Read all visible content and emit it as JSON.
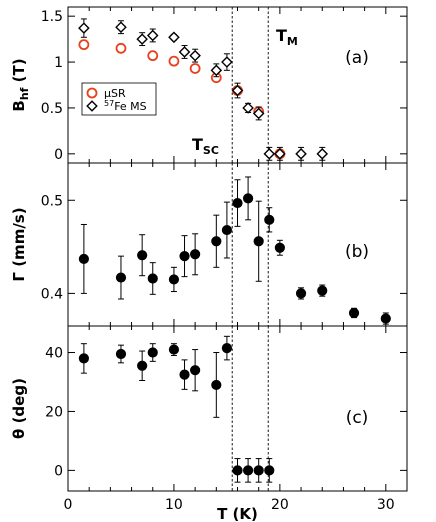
{
  "chart_data": {
    "type": "scatter",
    "x_axis": {
      "label": "T (K)",
      "lim": [
        0,
        32
      ],
      "ticks": [
        0,
        10,
        20,
        30
      ]
    },
    "markers": {
      "T_SC": 15.5,
      "T_M": 18.9
    },
    "labels": {
      "T_SC_main": "T",
      "T_SC_sub": "SC",
      "T_M_main": "T",
      "T_M_sub": "M"
    },
    "panels": [
      {
        "id": "a",
        "panel_label": "(a)",
        "ylabel_main": "B",
        "ylabel_sub": "hf",
        "ylabel_unit": " (T)",
        "ylim": [
          -0.1,
          1.6
        ],
        "yticks": [
          {
            "v": 0,
            "label": "0"
          },
          {
            "v": 0.5,
            "label": "0.5"
          },
          {
            "v": 1,
            "label": "1"
          },
          {
            "v": 1.5,
            "label": "1.5"
          }
        ],
        "series": [
          {
            "name_prefix": "μSR",
            "name_sup": "",
            "name_suffix": "",
            "marker": "circle-open",
            "color": "#e8401c",
            "points": [
              {
                "x": 1.5,
                "y": 1.19
              },
              {
                "x": 5,
                "y": 1.15
              },
              {
                "x": 8,
                "y": 1.07
              },
              {
                "x": 10,
                "y": 1.01
              },
              {
                "x": 12,
                "y": 0.93
              },
              {
                "x": 14,
                "y": 0.83
              },
              {
                "x": 16,
                "y": 0.69
              },
              {
                "x": 18,
                "y": 0.46
              },
              {
                "x": 20,
                "y": 0.0
              }
            ]
          },
          {
            "name_prefix": "",
            "name_sup": "57",
            "name_suffix": "Fe MS",
            "marker": "diamond-open",
            "color": "#000000",
            "points": [
              {
                "x": 1.5,
                "y": 1.37,
                "err": 0.1
              },
              {
                "x": 5,
                "y": 1.38,
                "err": 0.07
              },
              {
                "x": 7,
                "y": 1.25,
                "err": 0.07
              },
              {
                "x": 8,
                "y": 1.29,
                "err": 0.07
              },
              {
                "x": 10,
                "y": 1.27,
                "err": 0.03
              },
              {
                "x": 11,
                "y": 1.11,
                "err": 0.07
              },
              {
                "x": 12,
                "y": 1.07,
                "err": 0.07
              },
              {
                "x": 14,
                "y": 0.91,
                "err": 0.07
              },
              {
                "x": 15,
                "y": 1.0,
                "err": 0.09
              },
              {
                "x": 16,
                "y": 0.69,
                "err": 0.08
              },
              {
                "x": 17,
                "y": 0.5,
                "err": 0.05
              },
              {
                "x": 18,
                "y": 0.44,
                "err": 0.07
              },
              {
                "x": 19,
                "y": 0.0,
                "err": 0.07
              },
              {
                "x": 20,
                "y": 0.0,
                "err": 0.07
              },
              {
                "x": 22,
                "y": 0.0,
                "err": 0.07
              },
              {
                "x": 24,
                "y": 0.0,
                "err": 0.07
              }
            ]
          }
        ]
      },
      {
        "id": "b",
        "panel_label": "(b)",
        "ylabel_main": "Γ",
        "ylabel_sub": "",
        "ylabel_unit": " (mm/s)",
        "ylim": [
          0.365,
          0.54
        ],
        "yticks": [
          {
            "v": 0.4,
            "label": "0.4"
          },
          {
            "v": 0.5,
            "label": "0.5"
          }
        ],
        "series": [
          {
            "name_prefix": "",
            "name_sup": "",
            "name_suffix": "",
            "marker": "circle-filled",
            "color": "#000000",
            "points": [
              {
                "x": 1.5,
                "y": 0.437,
                "err": 0.037
              },
              {
                "x": 5,
                "y": 0.417,
                "err": 0.023
              },
              {
                "x": 7,
                "y": 0.441,
                "err": 0.022
              },
              {
                "x": 8,
                "y": 0.416,
                "err": 0.017
              },
              {
                "x": 10,
                "y": 0.415,
                "err": 0.013
              },
              {
                "x": 11,
                "y": 0.44,
                "err": 0.022
              },
              {
                "x": 12,
                "y": 0.442,
                "err": 0.022
              },
              {
                "x": 14,
                "y": 0.456,
                "err": 0.028
              },
              {
                "x": 15,
                "y": 0.468,
                "err": 0.03
              },
              {
                "x": 16,
                "y": 0.497,
                "err": 0.025
              },
              {
                "x": 17,
                "y": 0.502,
                "err": 0.023
              },
              {
                "x": 18,
                "y": 0.456,
                "err": 0.043
              },
              {
                "x": 19,
                "y": 0.479,
                "err": 0.013
              },
              {
                "x": 20,
                "y": 0.449,
                "err": 0.008
              },
              {
                "x": 22,
                "y": 0.4,
                "err": 0.006
              },
              {
                "x": 24,
                "y": 0.403,
                "err": 0.006
              },
              {
                "x": 27,
                "y": 0.379,
                "err": 0.005
              },
              {
                "x": 30,
                "y": 0.373,
                "err": 0.006
              }
            ]
          }
        ]
      },
      {
        "id": "c",
        "panel_label": "(c)",
        "ylabel_main": "θ",
        "ylabel_sub": "",
        "ylabel_unit": " (deg)",
        "ylim": [
          -7,
          49
        ],
        "yticks": [
          {
            "v": 0,
            "label": "0"
          },
          {
            "v": 20,
            "label": "20"
          },
          {
            "v": 40,
            "label": "40"
          }
        ],
        "series": [
          {
            "name_prefix": "",
            "name_sup": "",
            "name_suffix": "",
            "marker": "circle-filled",
            "color": "#000000",
            "points": [
              {
                "x": 1.5,
                "y": 38,
                "err": 5
              },
              {
                "x": 5,
                "y": 39.5,
                "err": 3
              },
              {
                "x": 7,
                "y": 35.5,
                "err": 5
              },
              {
                "x": 8,
                "y": 40,
                "err": 3
              },
              {
                "x": 10,
                "y": 41,
                "err": 2
              },
              {
                "x": 11,
                "y": 32.5,
                "err": 5
              },
              {
                "x": 12,
                "y": 34,
                "err": 7
              },
              {
                "x": 14,
                "y": 29,
                "err": 11
              },
              {
                "x": 15,
                "y": 41.5,
                "err": 4
              },
              {
                "x": 16,
                "y": 0,
                "err": 4
              },
              {
                "x": 17,
                "y": 0,
                "err": 4
              },
              {
                "x": 18,
                "y": 0,
                "err": 4
              },
              {
                "x": 19,
                "y": 0,
                "err": 4
              }
            ]
          }
        ]
      }
    ]
  }
}
